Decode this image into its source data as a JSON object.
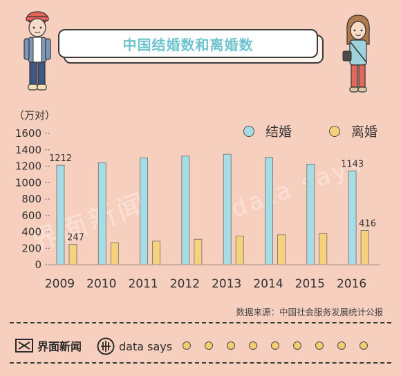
{
  "title": "中国结婚数和离婚数",
  "unit_label": "（万对）",
  "legend": {
    "marriage": "结婚",
    "divorce": "离婚"
  },
  "colors": {
    "marriage": "#a6dde5",
    "divorce": "#f6d27c",
    "background": "#f7cfbf",
    "title": "#6ec3cf"
  },
  "source": "数据来源：中国社会服务发展统计公报",
  "footer": {
    "brand_cn": "界面新闻",
    "brand_en": "data says"
  },
  "watermarks": {
    "left": "界面新闻",
    "right": "data says"
  },
  "chart_data": {
    "type": "bar",
    "categories": [
      "2009",
      "2010",
      "2011",
      "2012",
      "2013",
      "2014",
      "2015",
      "2016"
    ],
    "series": [
      {
        "name": "结婚",
        "values": [
          1212,
          1241,
          1302,
          1324,
          1347,
          1307,
          1225,
          1143
        ]
      },
      {
        "name": "离婚",
        "values": [
          247,
          268,
          287,
          310,
          350,
          364,
          384,
          416
        ]
      }
    ],
    "data_labels": [
      {
        "series": 0,
        "index": 0,
        "text": "1212"
      },
      {
        "series": 1,
        "index": 0,
        "text": "247"
      },
      {
        "series": 0,
        "index": 7,
        "text": "1143"
      },
      {
        "series": 1,
        "index": 7,
        "text": "416"
      }
    ],
    "yticks": [
      "0",
      "200",
      "400",
      "600",
      "800",
      "1000",
      "1200",
      "1400",
      "1600"
    ],
    "ylim": [
      0,
      1600
    ],
    "grid": false,
    "legend_position": "top-right"
  }
}
